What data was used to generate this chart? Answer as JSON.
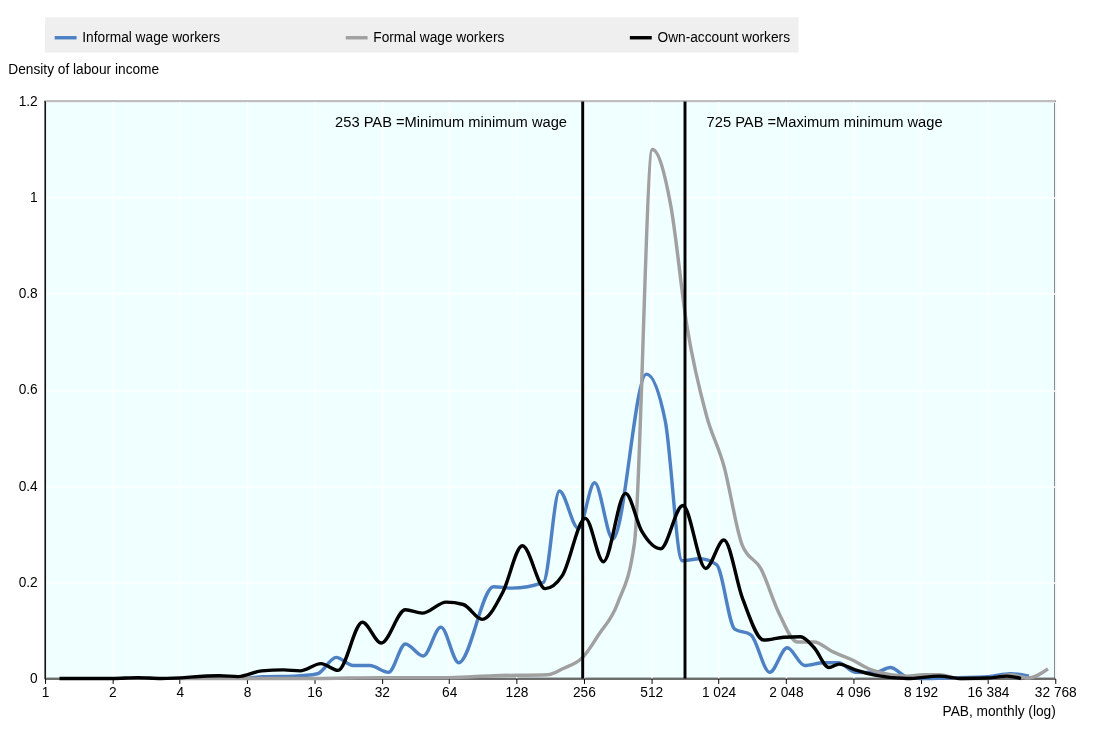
{
  "chart_data": {
    "type": "line",
    "xlabel": "PAB, monthly (log)",
    "ylabel": "Density of labour income",
    "log": "x",
    "grid": true,
    "legend": "top",
    "xlim": [
      1,
      32768
    ],
    "ylim": [
      0,
      1.2
    ],
    "xticks": [
      1,
      2,
      4,
      8,
      16,
      32,
      64,
      128,
      256,
      512,
      {
        "value": 1024,
        "label": "1 024"
      },
      {
        "value": 2048,
        "label": "2 048"
      },
      {
        "value": 4096,
        "label": "4 096"
      },
      {
        "value": 8192,
        "label": "8 192"
      },
      {
        "value": 16384,
        "label": "16 384"
      },
      {
        "value": 32768,
        "label": "32 768"
      }
    ],
    "yticks": [
      0,
      0.2,
      0.4,
      0.6,
      0.8,
      1,
      1.2
    ],
    "series": [
      {
        "name": "Informal wage workers",
        "color": "#4e81c4",
        "x": [
          8,
          9.5,
          13,
          16.5,
          20,
          23.8,
          28.3,
          34.3,
          40.8,
          49,
          58.8,
          70.6,
          101,
          122,
          169,
          199,
          242,
          286,
          345,
          487,
          592,
          704,
          843,
          1003,
          1209,
          1428,
          1734,
          2076,
          2486,
          3019,
          3516,
          4180,
          5120,
          6000,
          7130,
          8192,
          12000,
          16384,
          20700,
          25000
        ],
        "values": [
          0,
          0.004,
          0.005,
          0.01,
          0.044,
          0.027,
          0.027,
          0.013,
          0.072,
          0.047,
          0.107,
          0.033,
          0.191,
          0.188,
          0.2,
          0.39,
          0.312,
          0.407,
          0.29,
          0.633,
          0.535,
          0.245,
          0.249,
          0.237,
          0.103,
          0.091,
          0.013,
          0.064,
          0.027,
          0.033,
          0.033,
          0.013,
          0.012,
          0.023,
          0.003,
          0,
          0.002,
          0.004,
          0.01,
          0.005
        ]
      },
      {
        "name": "Formal wage workers",
        "color": "#a0a0a0",
        "x": [
          4,
          16,
          32,
          64,
          101,
          176,
          207,
          253,
          298,
          362,
          431,
          518,
          626,
          739,
          904,
          1082,
          1305,
          1585,
          1898,
          2304,
          2740,
          3304,
          4040,
          4940,
          6040,
          7130,
          8400,
          9940,
          12150,
          16384,
          20700,
          24800,
          30400
        ],
        "values": [
          0,
          0,
          0.002,
          0.002,
          0.006,
          0.008,
          0.021,
          0.044,
          0.091,
          0.156,
          0.282,
          1.1,
          0.984,
          0.734,
          0.547,
          0.442,
          0.278,
          0.228,
          0.138,
          0.076,
          0.076,
          0.056,
          0.039,
          0.018,
          0.008,
          0.005,
          0.008,
          0.008,
          0,
          0,
          0.008,
          0.001,
          0.02
        ]
      },
      {
        "name": "Own-account workers",
        "color": "#000000",
        "x": [
          1.16,
          2,
          2.6,
          3.3,
          6,
          7.3,
          9.3,
          11.6,
          13.8,
          17.1,
          20.4,
          26.2,
          31.8,
          40.8,
          48.5,
          62.1,
          74,
          90,
          111,
          136,
          172,
          205,
          260,
          313,
          393,
          465,
          564,
          709,
          897,
          1082,
          1314,
          1629,
          2006,
          2380,
          2740,
          3190,
          3540,
          4180,
          5120,
          7130,
          9940,
          12600,
          16384,
          20000,
          23000
        ],
        "values": [
          0,
          0,
          0.002,
          0,
          0.006,
          0.004,
          0.016,
          0.018,
          0.016,
          0.031,
          0.017,
          0.117,
          0.074,
          0.143,
          0.136,
          0.159,
          0.154,
          0.123,
          0.179,
          0.276,
          0.187,
          0.214,
          0.333,
          0.243,
          0.385,
          0.306,
          0.27,
          0.36,
          0.229,
          0.288,
          0.165,
          0.08,
          0.086,
          0.087,
          0.064,
          0.023,
          0.03,
          0.018,
          0.007,
          0,
          0.005,
          0,
          0.001,
          0.005,
          0
        ]
      }
    ],
    "ref_lines": [
      {
        "axis": "x",
        "value": 253,
        "label": "253 PAB =Minimum minimum wage",
        "color": "#000000"
      },
      {
        "axis": "x",
        "value": 725,
        "label": "725 PAB =Maximum minimum wage",
        "color": "#000000"
      }
    ]
  }
}
